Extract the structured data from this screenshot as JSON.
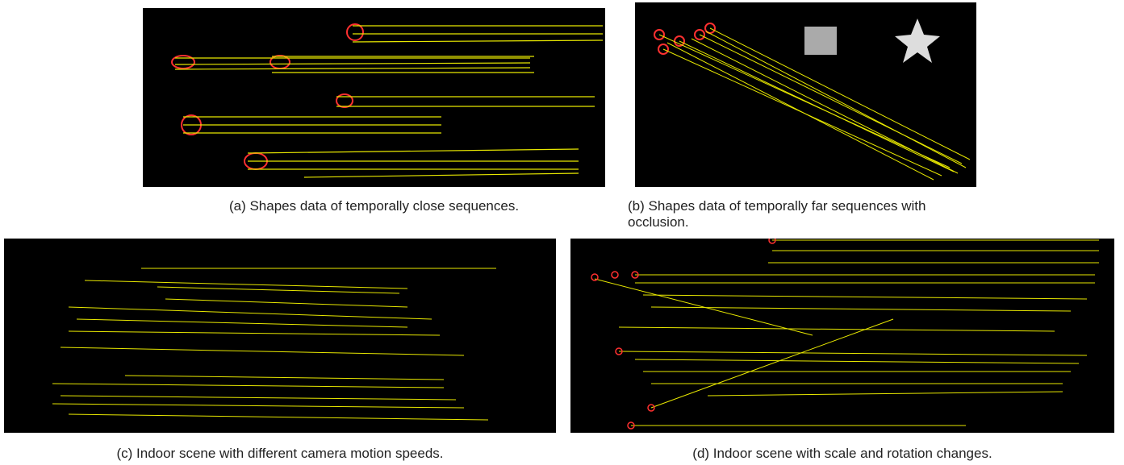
{
  "figures": [
    {
      "caption": "(a) Shapes data of temporally close sequences."
    },
    {
      "caption": "(b) Shapes data of temporally far sequences with occlusion."
    },
    {
      "caption": "(c) Indoor scene with different camera motion speeds."
    },
    {
      "caption": "(d) Indoor scene with scale and rotation changes."
    }
  ]
}
